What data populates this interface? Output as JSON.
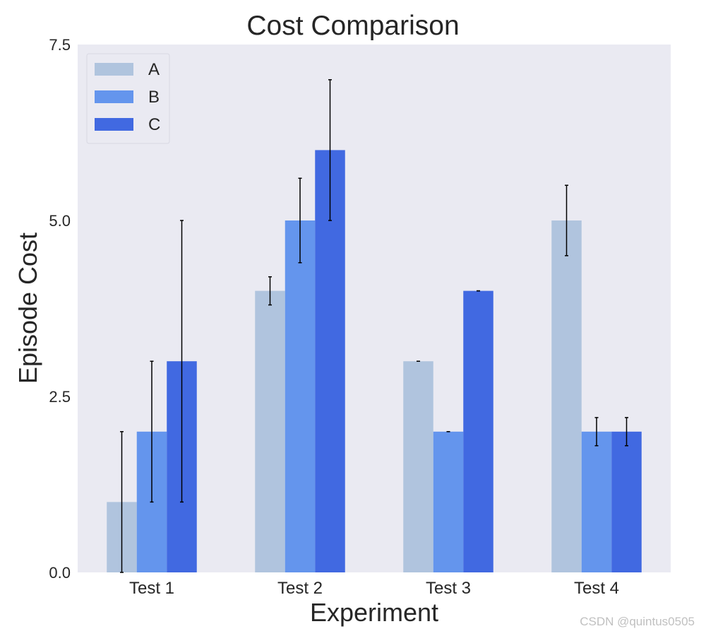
{
  "chart_data": {
    "type": "bar",
    "title": "Cost Comparison",
    "xlabel": "Experiment",
    "ylabel": "Episode Cost",
    "categories": [
      "Test 1",
      "Test 2",
      "Test 3",
      "Test 4"
    ],
    "ylim": [
      0,
      7.5
    ],
    "yticks": [
      "0.0",
      "2.5",
      "5.0",
      "7.5"
    ],
    "grid": false,
    "legend_position": "top-left",
    "series": [
      {
        "name": "A",
        "color": "#b0c4de",
        "values": [
          1,
          4,
          3,
          5
        ],
        "errors": [
          1,
          0.2,
          0,
          0.5
        ]
      },
      {
        "name": "B",
        "color": "#6495ed",
        "values": [
          2,
          5,
          2,
          2
        ],
        "errors": [
          1,
          0.6,
          0,
          0.2
        ]
      },
      {
        "name": "C",
        "color": "#4169e1",
        "values": [
          3,
          6,
          4,
          2
        ],
        "errors": [
          2,
          1,
          0,
          0.2
        ]
      }
    ],
    "background": "#eaeaf2"
  },
  "watermark": "CSDN @quintus0505"
}
